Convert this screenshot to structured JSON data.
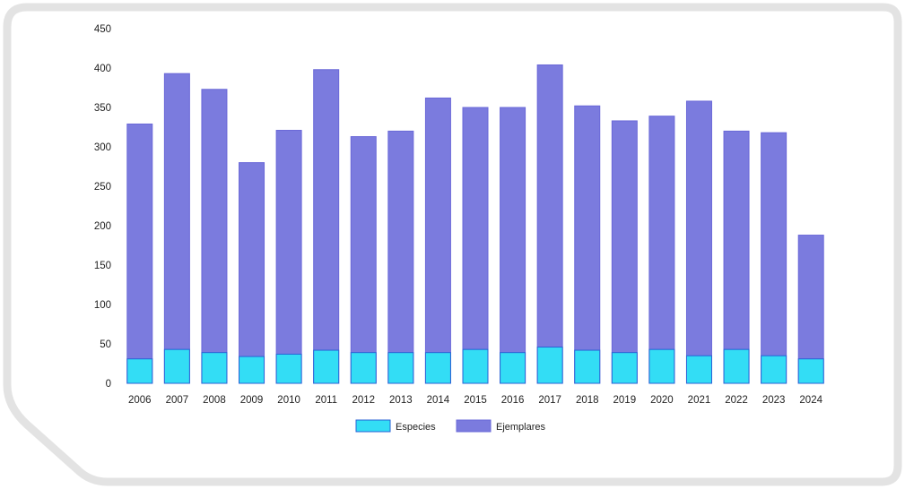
{
  "colors": {
    "frame": "#e3e3e3",
    "panel": "#ffffff",
    "ejemplares_fill": "#7b7bde",
    "ejemplares_stroke": "#6a68d8",
    "especies_fill": "#33ddf5",
    "especies_stroke": "#2a62d6",
    "axis_text": "#222222"
  },
  "chart_data": {
    "type": "bar",
    "title": "",
    "xlabel": "",
    "ylabel": "",
    "ylim": [
      0,
      450
    ],
    "yticks": [
      0,
      50,
      100,
      150,
      200,
      250,
      300,
      350,
      400,
      450
    ],
    "grid": false,
    "legend_position": "bottom-center",
    "overlapping_bars": true,
    "categories": [
      "2006",
      "2007",
      "2008",
      "2009",
      "2010",
      "2011",
      "2012",
      "2013",
      "2014",
      "2015",
      "2016",
      "2017",
      "2018",
      "2019",
      "2020",
      "2021",
      "2022",
      "2023",
      "2024"
    ],
    "series": [
      {
        "name": "Especies",
        "color": "#33ddf5",
        "values": [
          31,
          43,
          39,
          34,
          37,
          42,
          39,
          39,
          39,
          43,
          39,
          46,
          42,
          39,
          43,
          35,
          43,
          35,
          31
        ]
      },
      {
        "name": "Ejemplares",
        "color": "#7b7bde",
        "values": [
          329,
          393,
          373,
          280,
          321,
          398,
          313,
          320,
          362,
          350,
          350,
          404,
          352,
          333,
          339,
          358,
          320,
          318,
          188
        ]
      }
    ]
  }
}
